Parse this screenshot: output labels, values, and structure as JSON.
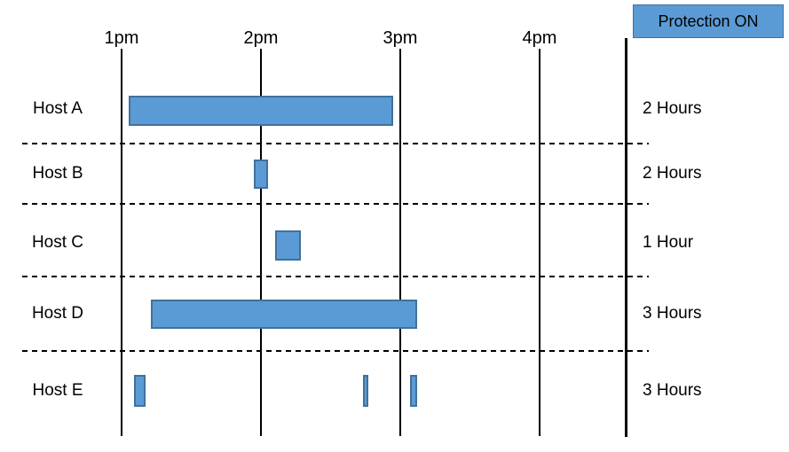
{
  "legend": {
    "label": "Protection ON",
    "fill_color": "#5B9BD5",
    "border_color": "#41719C",
    "text_color": "#000000"
  },
  "chart_data": {
    "type": "bar",
    "subtype": "gantt-timeline",
    "orientation": "horizontal",
    "grid": "vertical-hour-lines-and-dashed-row-separators",
    "legend_position": "top-right",
    "bar_color": "#5B9BD5",
    "bar_border_color": "#41719C",
    "line_color": "#000000",
    "x_ticks": [
      {
        "label": "1pm",
        "hour": 13
      },
      {
        "label": "2pm",
        "hour": 14
      },
      {
        "label": "3pm",
        "hour": 15
      },
      {
        "label": "4pm",
        "hour": 16
      }
    ],
    "x_range_hours": [
      13,
      16.6
    ],
    "rows": [
      {
        "host": "Host A",
        "duration_label": "2 Hours",
        "bars": [
          {
            "start_hour": 13.05,
            "end_hour": 14.95
          }
        ]
      },
      {
        "host": "Host B",
        "duration_label": "2 Hours",
        "bars": [
          {
            "start_hour": 13.95,
            "end_hour": 14.05
          }
        ]
      },
      {
        "host": "Host C",
        "duration_label": "1 Hour",
        "bars": [
          {
            "start_hour": 14.1,
            "end_hour": 14.29
          }
        ]
      },
      {
        "host": "Host D",
        "duration_label": "3 Hours",
        "bars": [
          {
            "start_hour": 13.21,
            "end_hour": 15.12
          }
        ]
      },
      {
        "host": "Host E",
        "duration_label": "3 Hours",
        "bars": [
          {
            "start_hour": 13.09,
            "end_hour": 13.17
          },
          {
            "start_hour": 14.73,
            "end_hour": 14.77
          },
          {
            "start_hour": 15.07,
            "end_hour": 15.12
          }
        ]
      }
    ]
  }
}
